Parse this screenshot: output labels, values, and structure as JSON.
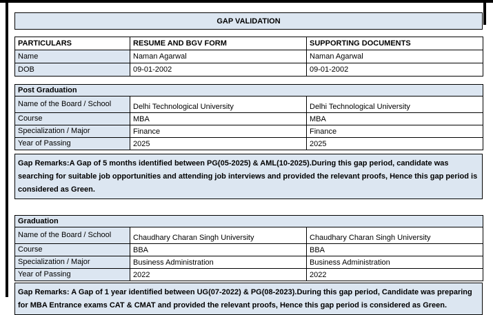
{
  "title": "GAP VALIDATION",
  "colors": {
    "accent_fill": "#dce6f1",
    "border": "#000000",
    "text": "#000000"
  },
  "particulars": {
    "headers": [
      "PARTICULARS",
      "RESUME AND BGV FORM",
      "SUPPORTING DOCUMENTS"
    ],
    "rows": [
      {
        "label": "Name",
        "resume": "Naman Agarwal",
        "supporting": "Naman Agarwal"
      },
      {
        "label": "DOB",
        "resume": "09-01-2002",
        "supporting": "09-01-2002"
      }
    ]
  },
  "sections": [
    {
      "title": "Post Graduation",
      "rows": [
        {
          "label": "Name of the Board / School",
          "resume": "Delhi Technological University",
          "supporting": "Delhi Technological University"
        },
        {
          "label": "Course",
          "resume": "MBA",
          "supporting": "MBA"
        },
        {
          "label": "Specialization / Major",
          "resume": "Finance",
          "supporting": "Finance"
        },
        {
          "label": "Year of Passing",
          "resume": "2025",
          "supporting": "2025"
        }
      ],
      "remarks": "Gap Remarks:A Gap of 5 months identified between PG(05-2025) & AML(10-2025).During this gap period, candidate was searching for suitable job opportunities and attending job interviews and provided the relevant proofs, Hence this gap period is considered as Green."
    },
    {
      "title": "Graduation",
      "rows": [
        {
          "label": "Name of the Board / School",
          "resume": "Chaudhary Charan Singh University",
          "supporting": "Chaudhary Charan Singh University"
        },
        {
          "label": "Course",
          "resume": "BBA",
          "supporting": "BBA"
        },
        {
          "label": "Specialization / Major",
          "resume": "Business Administration",
          "supporting": "Business Administration"
        },
        {
          "label": "Year of Passing",
          "resume": "2022",
          "supporting": "2022"
        }
      ],
      "remarks": "Gap Remarks: A Gap of 1 year identified between UG(07-2022) & PG(08-2023).During this gap period, Candidate was preparing for MBA Entrance exams CAT & CMAT and provided the relevant proofs, Hence this gap period is considered as Green."
    }
  ]
}
